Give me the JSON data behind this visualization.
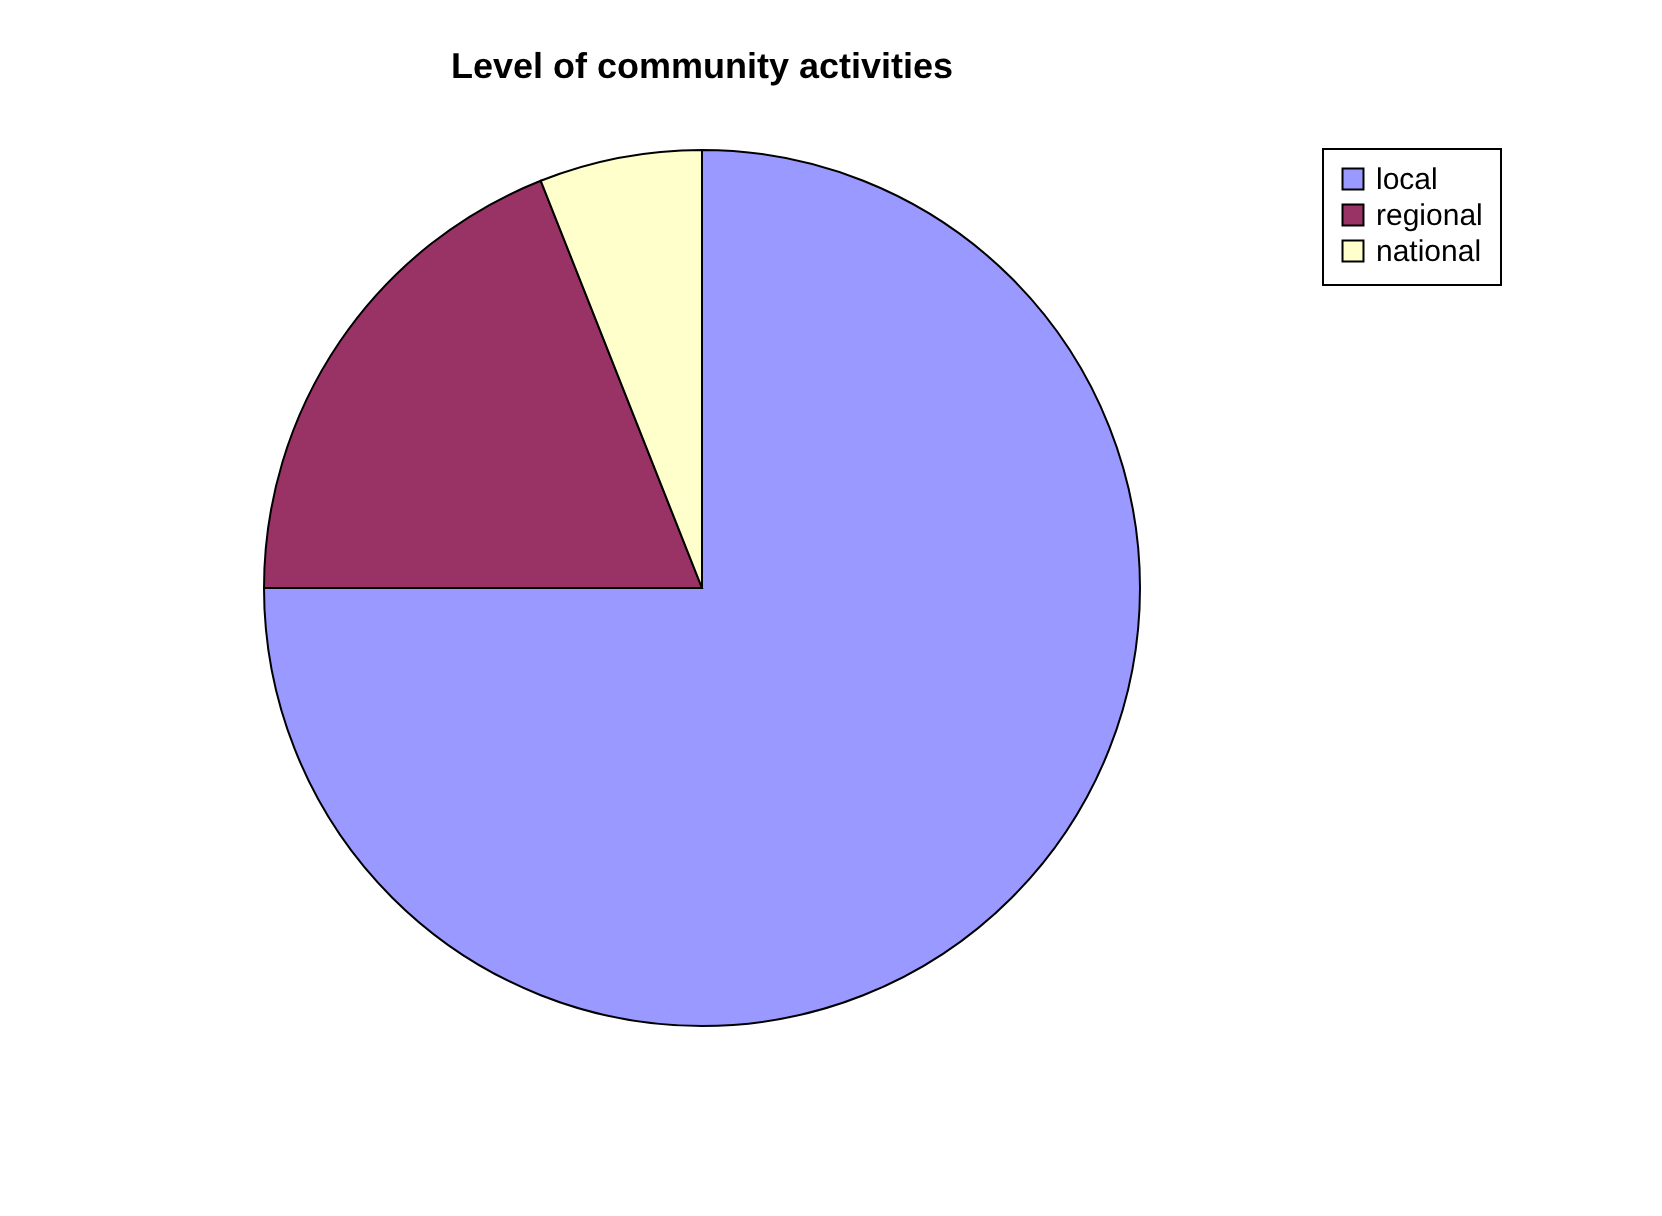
{
  "chart_data": {
    "type": "pie",
    "title": "Level of community activities",
    "categories": [
      "local",
      "regional",
      "national"
    ],
    "values": [
      75,
      19,
      6
    ],
    "colors": [
      "#9999ff",
      "#993366",
      "#ffffcc"
    ],
    "legend": "right"
  }
}
